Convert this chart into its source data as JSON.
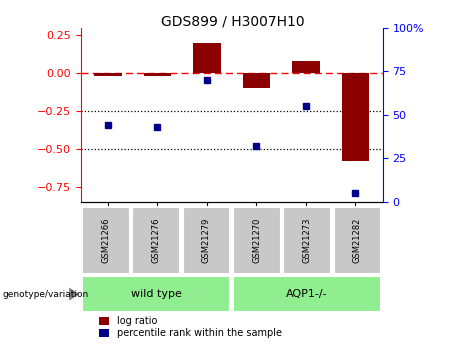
{
  "title": "GDS899 / H3007H10",
  "samples": [
    "GSM21266",
    "GSM21276",
    "GSM21279",
    "GSM21270",
    "GSM21273",
    "GSM21282"
  ],
  "log_ratio": [
    -0.02,
    -0.02,
    0.2,
    -0.1,
    0.08,
    -0.58
  ],
  "percentile_rank": [
    44,
    43,
    70,
    32,
    55,
    5
  ],
  "bar_color": "#8B0000",
  "point_color": "#00008B",
  "ylim_left": [
    -0.85,
    0.3
  ],
  "ylim_right": [
    0,
    100
  ],
  "yticks_left": [
    -0.75,
    -0.5,
    -0.25,
    0,
    0.25
  ],
  "yticks_right": [
    0,
    25,
    50,
    75,
    100
  ],
  "hline_y": 0,
  "dotted_lines": [
    -0.25,
    -0.5
  ],
  "bar_width": 0.55,
  "group_labels": [
    "wild type",
    "AQP1-/-"
  ],
  "group_color": "#90EE90",
  "sample_box_color": "#C8C8C8",
  "genotype_label": "genotype/variation"
}
